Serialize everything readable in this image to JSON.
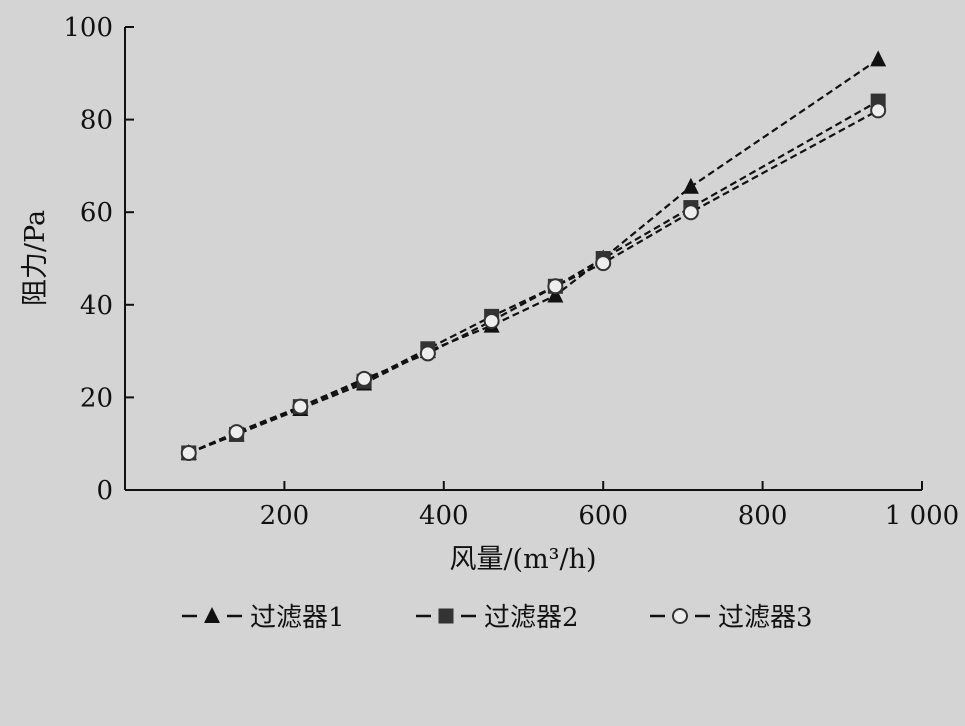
{
  "chart_data": {
    "type": "line",
    "title": "",
    "xlabel": "风量/(m³/h)",
    "ylabel": "阻力/Pa",
    "xlim": [
      0,
      1000
    ],
    "ylim": [
      0,
      100
    ],
    "x_ticks": [
      200,
      400,
      600,
      800,
      1000
    ],
    "x_tick_labels": [
      "200",
      "400",
      "600",
      "800",
      "1 000"
    ],
    "y_ticks": [
      0,
      20,
      40,
      60,
      80,
      100
    ],
    "y_tick_labels": [
      "0",
      "20",
      "40",
      "60",
      "80",
      "100"
    ],
    "grid": false,
    "legend_position": "bottom",
    "series": [
      {
        "name": "过滤器1",
        "marker": "triangle-filled",
        "line_style": "dashed",
        "color": "#111111",
        "x": [
          80,
          140,
          220,
          300,
          380,
          460,
          540,
          600,
          710,
          945
        ],
        "y": [
          8,
          12,
          17.5,
          23,
          30,
          35.5,
          42,
          50,
          65.5,
          93
        ]
      },
      {
        "name": "过滤器2",
        "marker": "square-filled",
        "line_style": "dashed",
        "color": "#111111",
        "x": [
          80,
          140,
          220,
          300,
          380,
          460,
          540,
          600,
          710,
          945
        ],
        "y": [
          8,
          12,
          18,
          23.5,
          30.5,
          37.5,
          44,
          50,
          61,
          84
        ]
      },
      {
        "name": "过滤器3",
        "marker": "circle-open",
        "line_style": "dashed",
        "color": "#111111",
        "x": [
          80,
          140,
          220,
          300,
          380,
          460,
          540,
          600,
          710,
          945
        ],
        "y": [
          8,
          12.5,
          18,
          24,
          29.5,
          36.5,
          44,
          49,
          60,
          82
        ]
      }
    ]
  }
}
